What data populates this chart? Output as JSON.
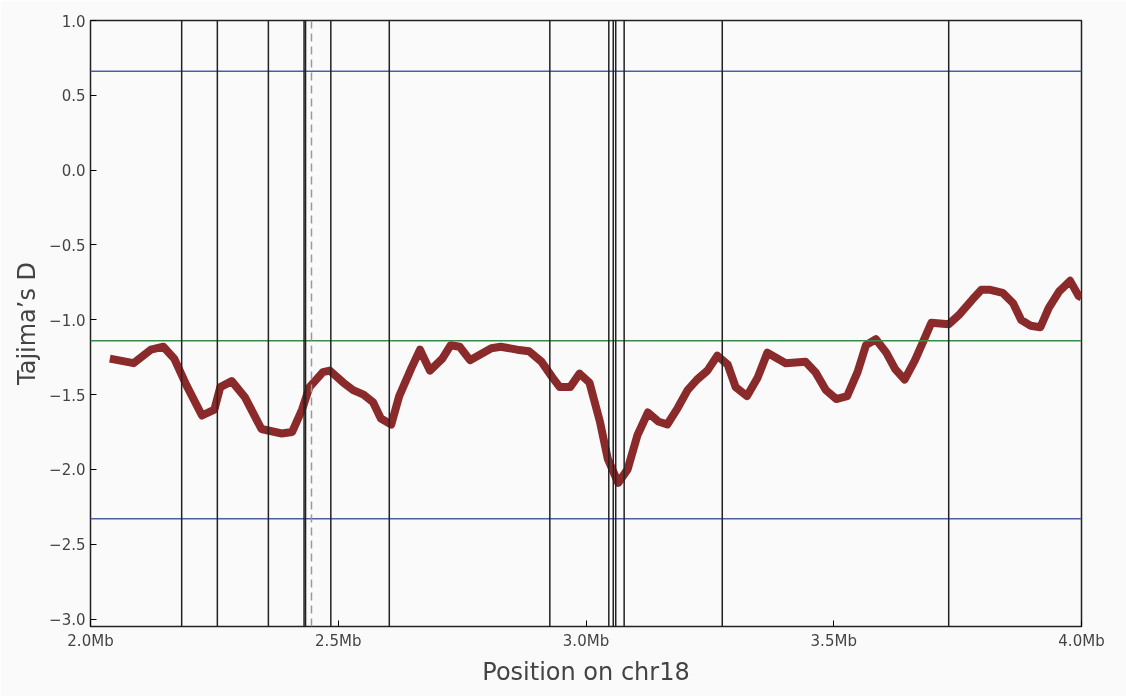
{
  "chart_data": {
    "type": "line",
    "xlabel": "Position on chr18",
    "ylabel": "Tajima’s D",
    "xlim": [
      2.0,
      4.0
    ],
    "ylim": [
      -3.05,
      1.0
    ],
    "xticks": [
      {
        "value": 2.0,
        "label": "2.0Mb"
      },
      {
        "value": 2.5,
        "label": "2.5Mb"
      },
      {
        "value": 3.0,
        "label": "3.0Mb"
      },
      {
        "value": 3.5,
        "label": "3.5Mb"
      },
      {
        "value": 4.0,
        "label": "4.0Mb"
      }
    ],
    "yticks": [
      {
        "value": 1.0,
        "label": "1.0"
      },
      {
        "value": 0.5,
        "label": "0.5"
      },
      {
        "value": 0.0,
        "label": "0.0"
      },
      {
        "value": -0.5,
        "label": "−0.5"
      },
      {
        "value": -1.0,
        "label": "−1.0"
      },
      {
        "value": -1.5,
        "label": "−1.5"
      },
      {
        "value": -2.0,
        "label": "−2.0"
      },
      {
        "value": -2.5,
        "label": "−2.5"
      },
      {
        "value": -3.0,
        "label": "−3.0"
      }
    ],
    "grid": false,
    "marker": "none",
    "line_style": "solid",
    "series": [
      {
        "color": "#8b2a2a",
        "x": [
          2.039,
          2.087,
          2.122,
          2.147,
          2.169,
          2.194,
          2.225,
          2.25,
          2.262,
          2.285,
          2.312,
          2.345,
          2.386,
          2.407,
          2.427,
          2.442,
          2.469,
          2.483,
          2.51,
          2.53,
          2.551,
          2.57,
          2.586,
          2.607,
          2.623,
          2.648,
          2.665,
          2.685,
          2.71,
          2.727,
          2.745,
          2.766,
          2.809,
          2.828,
          2.861,
          2.885,
          2.91,
          2.931,
          2.947,
          2.968,
          2.987,
          3.007,
          3.028,
          3.044,
          3.065,
          3.084,
          3.104,
          3.125,
          3.146,
          3.164,
          3.185,
          3.205,
          3.224,
          3.245,
          3.265,
          3.286,
          3.302,
          3.325,
          3.346,
          3.366,
          3.403,
          3.443,
          3.463,
          3.484,
          3.505,
          3.527,
          3.548,
          3.565,
          3.585,
          3.606,
          3.624,
          3.643,
          3.664,
          3.68,
          3.697,
          3.732,
          3.752,
          3.781,
          3.798,
          3.816,
          3.841,
          3.862,
          3.878,
          3.897,
          3.917,
          3.934,
          3.955,
          3.977,
          3.994,
          4.0
        ],
        "values": [
          -1.26,
          -1.29,
          -1.2,
          -1.18,
          -1.26,
          -1.44,
          -1.64,
          -1.6,
          -1.45,
          -1.41,
          -1.52,
          -1.73,
          -1.76,
          -1.75,
          -1.6,
          -1.45,
          -1.35,
          -1.34,
          -1.42,
          -1.47,
          -1.5,
          -1.55,
          -1.66,
          -1.7,
          -1.51,
          -1.32,
          -1.2,
          -1.34,
          -1.26,
          -1.17,
          -1.18,
          -1.27,
          -1.19,
          -1.18,
          -1.2,
          -1.21,
          -1.28,
          -1.38,
          -1.45,
          -1.45,
          -1.36,
          -1.42,
          -1.68,
          -1.93,
          -2.09,
          -2.0,
          -1.77,
          -1.62,
          -1.68,
          -1.7,
          -1.59,
          -1.47,
          -1.4,
          -1.34,
          -1.24,
          -1.3,
          -1.45,
          -1.51,
          -1.39,
          -1.22,
          -1.29,
          -1.28,
          -1.35,
          -1.47,
          -1.53,
          -1.51,
          -1.35,
          -1.17,
          -1.13,
          -1.22,
          -1.33,
          -1.4,
          -1.27,
          -1.15,
          -1.02,
          -1.03,
          -0.97,
          -0.86,
          -0.8,
          -0.8,
          -0.82,
          -0.89,
          -1.0,
          -1.04,
          -1.05,
          -0.92,
          -0.81,
          -0.74,
          -0.84,
          -0.85
        ]
      }
    ],
    "ref_lines": [
      {
        "axis": "y",
        "value": 0.66,
        "color": "#4c5ea8"
      },
      {
        "axis": "y",
        "value": -1.14,
        "color": "#3a8a4a"
      },
      {
        "axis": "y",
        "value": -2.33,
        "color": "#4c5ea8"
      },
      {
        "axis": "x",
        "value": 2.184,
        "color": "#222222"
      },
      {
        "axis": "x",
        "value": 2.256,
        "color": "#222222"
      },
      {
        "axis": "x",
        "value": 2.359,
        "color": "#222222"
      },
      {
        "axis": "x",
        "value": 2.431,
        "color": "#222222"
      },
      {
        "axis": "x",
        "value": 2.434,
        "color": "#222222"
      },
      {
        "axis": "x",
        "value": 2.446,
        "color": "#999999",
        "line_style": "dashed"
      },
      {
        "axis": "x",
        "value": 2.485,
        "color": "#222222"
      },
      {
        "axis": "x",
        "value": 2.603,
        "color": "#222222"
      },
      {
        "axis": "x",
        "value": 2.927,
        "color": "#222222"
      },
      {
        "axis": "x",
        "value": 3.046,
        "color": "#222222"
      },
      {
        "axis": "x",
        "value": 3.055,
        "color": "#222222"
      },
      {
        "axis": "x",
        "value": 3.06,
        "color": "#222222"
      },
      {
        "axis": "x",
        "value": 3.077,
        "color": "#222222"
      },
      {
        "axis": "x",
        "value": 3.275,
        "color": "#222222"
      },
      {
        "axis": "x",
        "value": 3.732,
        "color": "#222222"
      }
    ]
  }
}
